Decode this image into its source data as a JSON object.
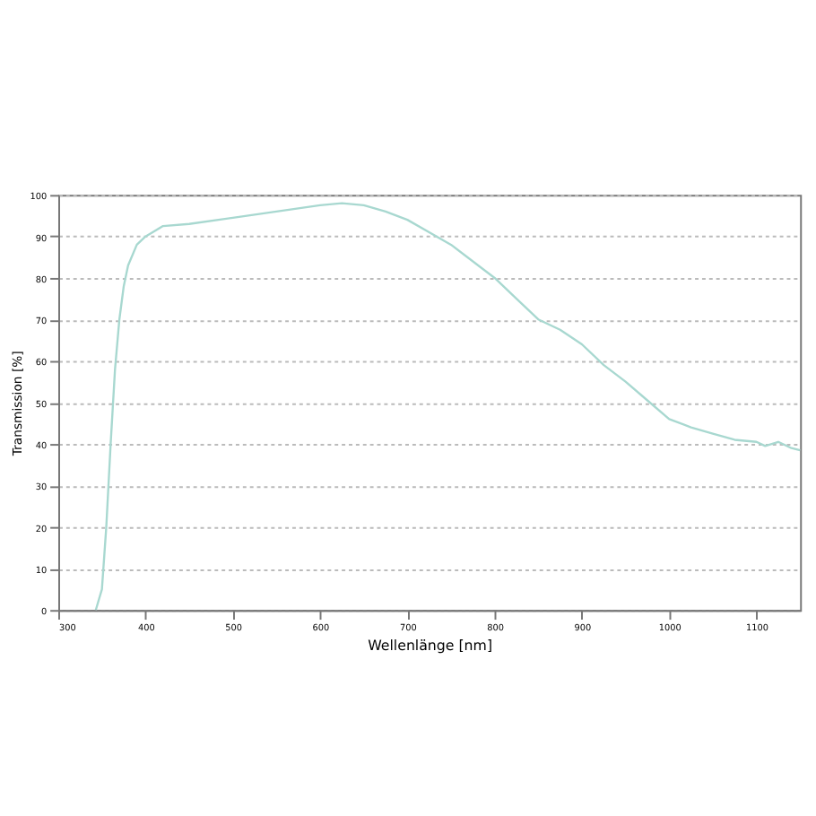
{
  "chart_data": {
    "type": "line",
    "xlabel": "Wellenlänge [nm]",
    "ylabel": "Transmission [%]",
    "x": [
      343,
      350,
      355,
      360,
      365,
      370,
      375,
      380,
      390,
      400,
      420,
      450,
      500,
      550,
      600,
      625,
      650,
      675,
      700,
      750,
      800,
      825,
      850,
      875,
      900,
      925,
      950,
      975,
      1000,
      1025,
      1050,
      1075,
      1100,
      1110,
      1125,
      1140,
      1150
    ],
    "series": [
      {
        "color": "#a8d8d0",
        "values": [
          0,
          5,
          20,
          40,
          58,
          70,
          78,
          83,
          88,
          90,
          92.5,
          93,
          94.5,
          96,
          97.5,
          98,
          97.5,
          96,
          94,
          88,
          80,
          75,
          70,
          67.5,
          64,
          59,
          55,
          50.5,
          46,
          44,
          42.5,
          41,
          40.5,
          39.5,
          40.5,
          39,
          38.5
        ]
      }
    ],
    "xlim": [
      300,
      1150
    ],
    "xticks": [
      300,
      400,
      500,
      600,
      700,
      800,
      900,
      1000,
      1100
    ],
    "ylim": [
      0,
      100
    ],
    "yticks": [
      0,
      10,
      20,
      30,
      40,
      50,
      60,
      70,
      80,
      90,
      100
    ],
    "grid": "y",
    "marker": "none",
    "line_style": "solid"
  }
}
